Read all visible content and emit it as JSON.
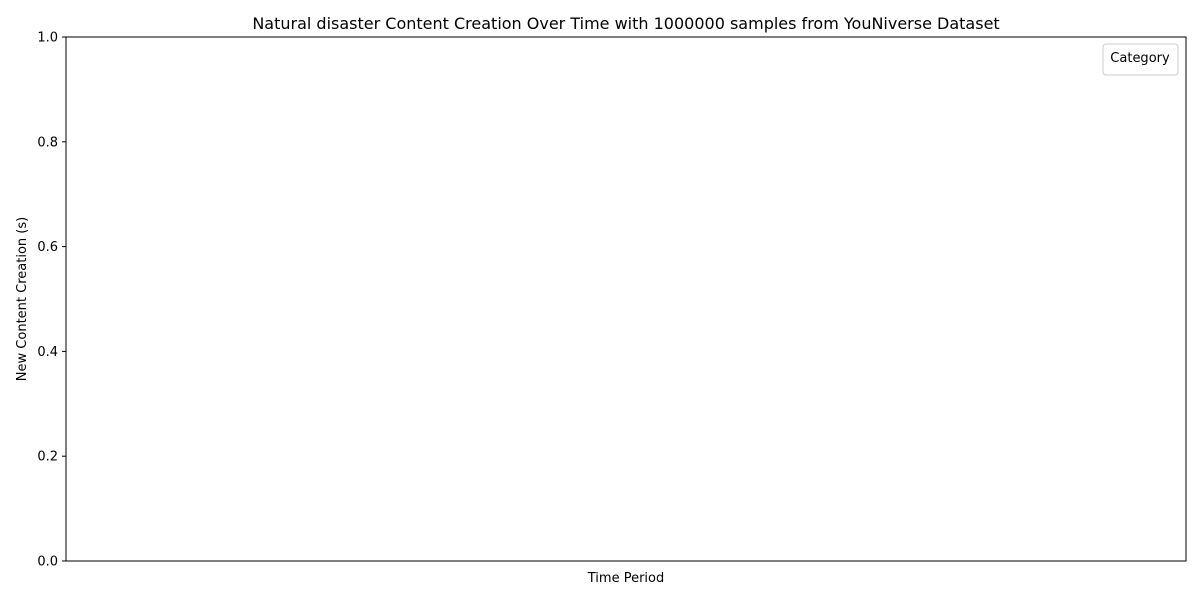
{
  "chart_data": {
    "type": "line",
    "title": "Natural disaster Content Creation Over Time with 1000000 samples from YouNiverse Dataset",
    "xlabel": "Time Period",
    "ylabel": "New Content Creation (s)",
    "ylim": [
      0,
      1
    ],
    "yticks": [
      "0.0",
      "0.2",
      "0.4",
      "0.6",
      "0.8",
      "1.0"
    ],
    "xticks": [],
    "series": [],
    "grid": false,
    "legend": {
      "title": "Category",
      "placement": "upper-right",
      "entries": []
    }
  }
}
